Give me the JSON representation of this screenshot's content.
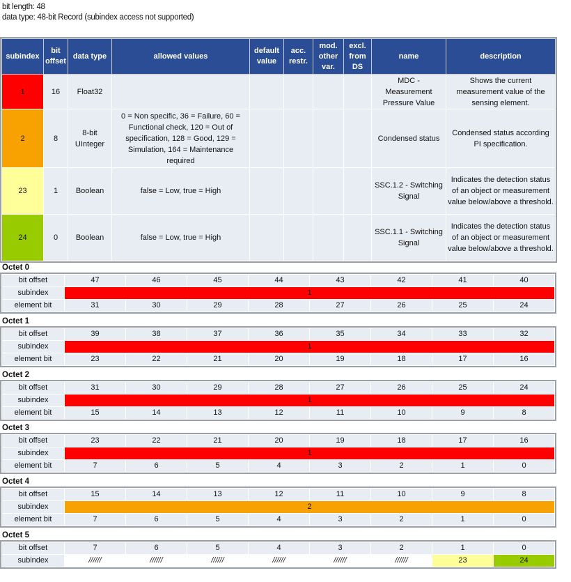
{
  "header": {
    "bit_length": "bit length: 48",
    "data_type": "data type: 48-bit Record (subindex access not supported)"
  },
  "colors": {
    "header_bg": "#2b4d96",
    "cell_bg": "#e8edf4",
    "red": "#ff0000",
    "orange": "#f7a200",
    "yellow": "#ffff99",
    "green": "#99cc00"
  },
  "table": {
    "columns": [
      "subindex",
      "bit offset",
      "data type",
      "allowed values",
      "default value",
      "acc. restr.",
      "mod. other var.",
      "excl. from DS",
      "name",
      "description"
    ],
    "rows": [
      {
        "subindex": "1",
        "color": "#ff0000",
        "bit_offset": "16",
        "data_type": "Float32",
        "allowed_values": "",
        "default_value": "",
        "acc_restr": "",
        "mod_other": "",
        "excl_ds": "",
        "name": "MDC - Measurement Pressure Value",
        "description": "Shows the current measurement value of the sensing element."
      },
      {
        "subindex": "2",
        "color": "#f7a200",
        "bit_offset": "8",
        "data_type": "8-bit UInteger",
        "allowed_values": "0 = Non specific, 36 = Failure, 60 = Functional check, 120 = Out of specification, 128 = Good, 129 = Simulation, 164 = Maintenance required",
        "default_value": "",
        "acc_restr": "",
        "mod_other": "",
        "excl_ds": "",
        "name": "Condensed status",
        "description": "Condensed status according PI specification."
      },
      {
        "subindex": "23",
        "color": "#ffff99",
        "bit_offset": "1",
        "data_type": "Boolean",
        "allowed_values": "false = Low, true = High",
        "default_value": "",
        "acc_restr": "",
        "mod_other": "",
        "excl_ds": "",
        "name": "SSC.1.2 - Switching Signal",
        "description": "Indicates the detection status of an object or measurement value below/above a threshold."
      },
      {
        "subindex": "24",
        "color": "#99cc00",
        "bit_offset": "0",
        "data_type": "Boolean",
        "allowed_values": "false = Low, true = High",
        "default_value": "",
        "acc_restr": "",
        "mod_other": "",
        "excl_ds": "",
        "name": "SSC.1.1 - Switching Signal",
        "description": "Indicates the detection status of an object or measurement value below/above a threshold."
      }
    ]
  },
  "row_labels": {
    "bit_offset": "bit offset",
    "subindex": "subindex",
    "element_bit": "element bit"
  },
  "octets": [
    {
      "title": "Octet 0",
      "bit_offsets": [
        "47",
        "46",
        "45",
        "44",
        "43",
        "42",
        "41",
        "40"
      ],
      "subindex": [
        {
          "text": "1",
          "span": 8,
          "color": "#ff0000"
        }
      ],
      "element_bits": [
        "31",
        "30",
        "29",
        "28",
        "27",
        "26",
        "25",
        "24"
      ]
    },
    {
      "title": "Octet 1",
      "bit_offsets": [
        "39",
        "38",
        "37",
        "36",
        "35",
        "34",
        "33",
        "32"
      ],
      "subindex": [
        {
          "text": "1",
          "span": 8,
          "color": "#ff0000"
        }
      ],
      "element_bits": [
        "23",
        "22",
        "21",
        "20",
        "19",
        "18",
        "17",
        "16"
      ]
    },
    {
      "title": "Octet 2",
      "bit_offsets": [
        "31",
        "30",
        "29",
        "28",
        "27",
        "26",
        "25",
        "24"
      ],
      "subindex": [
        {
          "text": "1",
          "span": 8,
          "color": "#ff0000"
        }
      ],
      "element_bits": [
        "15",
        "14",
        "13",
        "12",
        "11",
        "10",
        "9",
        "8"
      ]
    },
    {
      "title": "Octet 3",
      "bit_offsets": [
        "23",
        "22",
        "21",
        "20",
        "19",
        "18",
        "17",
        "16"
      ],
      "subindex": [
        {
          "text": "1",
          "span": 8,
          "color": "#ff0000"
        }
      ],
      "element_bits": [
        "7",
        "6",
        "5",
        "4",
        "3",
        "2",
        "1",
        "0"
      ]
    },
    {
      "title": "Octet 4",
      "bit_offsets": [
        "15",
        "14",
        "13",
        "12",
        "11",
        "10",
        "9",
        "8"
      ],
      "subindex": [
        {
          "text": "2",
          "span": 8,
          "color": "#f7a200"
        }
      ],
      "element_bits": [
        "7",
        "6",
        "5",
        "4",
        "3",
        "2",
        "1",
        "0"
      ]
    },
    {
      "title": "Octet 5",
      "bit_offsets": [
        "7",
        "6",
        "5",
        "4",
        "3",
        "2",
        "1",
        "0"
      ],
      "subindex": [
        {
          "text": "//////",
          "span": 1,
          "color": "#ffffff"
        },
        {
          "text": "//////",
          "span": 1,
          "color": "#ffffff"
        },
        {
          "text": "//////",
          "span": 1,
          "color": "#ffffff"
        },
        {
          "text": "//////",
          "span": 1,
          "color": "#ffffff"
        },
        {
          "text": "//////",
          "span": 1,
          "color": "#ffffff"
        },
        {
          "text": "//////",
          "span": 1,
          "color": "#ffffff"
        },
        {
          "text": "23",
          "span": 1,
          "color": "#ffff99"
        },
        {
          "text": "24",
          "span": 1,
          "color": "#99cc00"
        }
      ],
      "element_bits": []
    }
  ]
}
